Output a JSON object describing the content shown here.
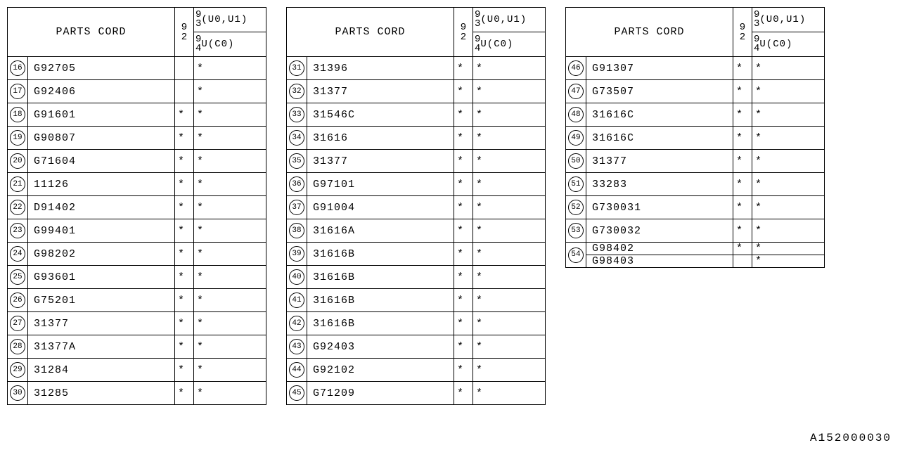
{
  "header": {
    "parts_cord": "PARTS CORD",
    "col92_top": "9",
    "col92_bot": "2",
    "sub1_top": "9",
    "sub1_bot": "3",
    "sub1_rest": "(U0,U1)",
    "sub2_top": "9",
    "sub2_bot": "4",
    "sub2_rest": "U(C0)"
  },
  "footer": "A152000030",
  "star": "*",
  "tables": [
    {
      "rows": [
        {
          "idx": "16",
          "code": "G92705",
          "c1": "",
          "c2": "*"
        },
        {
          "idx": "17",
          "code": "G92406",
          "c1": "",
          "c2": "*"
        },
        {
          "idx": "18",
          "code": "G91601",
          "c1": "*",
          "c2": "*"
        },
        {
          "idx": "19",
          "code": "G90807",
          "c1": "*",
          "c2": "*"
        },
        {
          "idx": "20",
          "code": "G71604",
          "c1": "*",
          "c2": "*"
        },
        {
          "idx": "21",
          "code": "11126",
          "c1": "*",
          "c2": "*"
        },
        {
          "idx": "22",
          "code": "D91402",
          "c1": "*",
          "c2": "*"
        },
        {
          "idx": "23",
          "code": "G99401",
          "c1": "*",
          "c2": "*"
        },
        {
          "idx": "24",
          "code": "G98202",
          "c1": "*",
          "c2": "*"
        },
        {
          "idx": "25",
          "code": "G93601",
          "c1": "*",
          "c2": "*"
        },
        {
          "idx": "26",
          "code": "G75201",
          "c1": "*",
          "c2": "*"
        },
        {
          "idx": "27",
          "code": "31377",
          "c1": "*",
          "c2": "*"
        },
        {
          "idx": "28",
          "code": "31377A",
          "c1": "*",
          "c2": "*"
        },
        {
          "idx": "29",
          "code": "31284",
          "c1": "*",
          "c2": "*"
        },
        {
          "idx": "30",
          "code": "31285",
          "c1": "*",
          "c2": "*"
        }
      ]
    },
    {
      "rows": [
        {
          "idx": "31",
          "code": "31396",
          "c1": "*",
          "c2": "*"
        },
        {
          "idx": "32",
          "code": "31377",
          "c1": "*",
          "c2": "*"
        },
        {
          "idx": "33",
          "code": "31546C",
          "c1": "*",
          "c2": "*"
        },
        {
          "idx": "34",
          "code": "31616",
          "c1": "*",
          "c2": "*"
        },
        {
          "idx": "35",
          "code": "31377",
          "c1": "*",
          "c2": "*"
        },
        {
          "idx": "36",
          "code": "G97101",
          "c1": "*",
          "c2": "*"
        },
        {
          "idx": "37",
          "code": "G91004",
          "c1": "*",
          "c2": "*"
        },
        {
          "idx": "38",
          "code": "31616A",
          "c1": "*",
          "c2": "*"
        },
        {
          "idx": "39",
          "code": "31616B",
          "c1": "*",
          "c2": "*"
        },
        {
          "idx": "40",
          "code": "31616B",
          "c1": "*",
          "c2": "*"
        },
        {
          "idx": "41",
          "code": "31616B",
          "c1": "*",
          "c2": "*"
        },
        {
          "idx": "42",
          "code": "31616B",
          "c1": "*",
          "c2": "*"
        },
        {
          "idx": "43",
          "code": "G92403",
          "c1": "*",
          "c2": "*"
        },
        {
          "idx": "44",
          "code": "G92102",
          "c1": "*",
          "c2": "*"
        },
        {
          "idx": "45",
          "code": "G71209",
          "c1": "*",
          "c2": "*"
        }
      ]
    },
    {
      "rows": [
        {
          "idx": "46",
          "code": "G91307",
          "c1": "*",
          "c2": "*"
        },
        {
          "idx": "47",
          "code": "G73507",
          "c1": "*",
          "c2": "*"
        },
        {
          "idx": "48",
          "code": "31616C",
          "c1": "*",
          "c2": "*"
        },
        {
          "idx": "49",
          "code": "31616C",
          "c1": "*",
          "c2": "*"
        },
        {
          "idx": "50",
          "code": "31377",
          "c1": "*",
          "c2": "*"
        },
        {
          "idx": "51",
          "code": "33283",
          "c1": "*",
          "c2": "*"
        },
        {
          "idx": "52",
          "code": "G730031",
          "c1": "*",
          "c2": "*"
        },
        {
          "idx": "53",
          "code": "G730032",
          "c1": "*",
          "c2": "*"
        },
        {
          "idx": "54",
          "code": "G98402",
          "c1": "*",
          "c2": "*",
          "rowspan": 2
        },
        {
          "idx": "",
          "code": "G98403",
          "c1": "",
          "c2": "*",
          "skipidx": true
        }
      ]
    }
  ]
}
